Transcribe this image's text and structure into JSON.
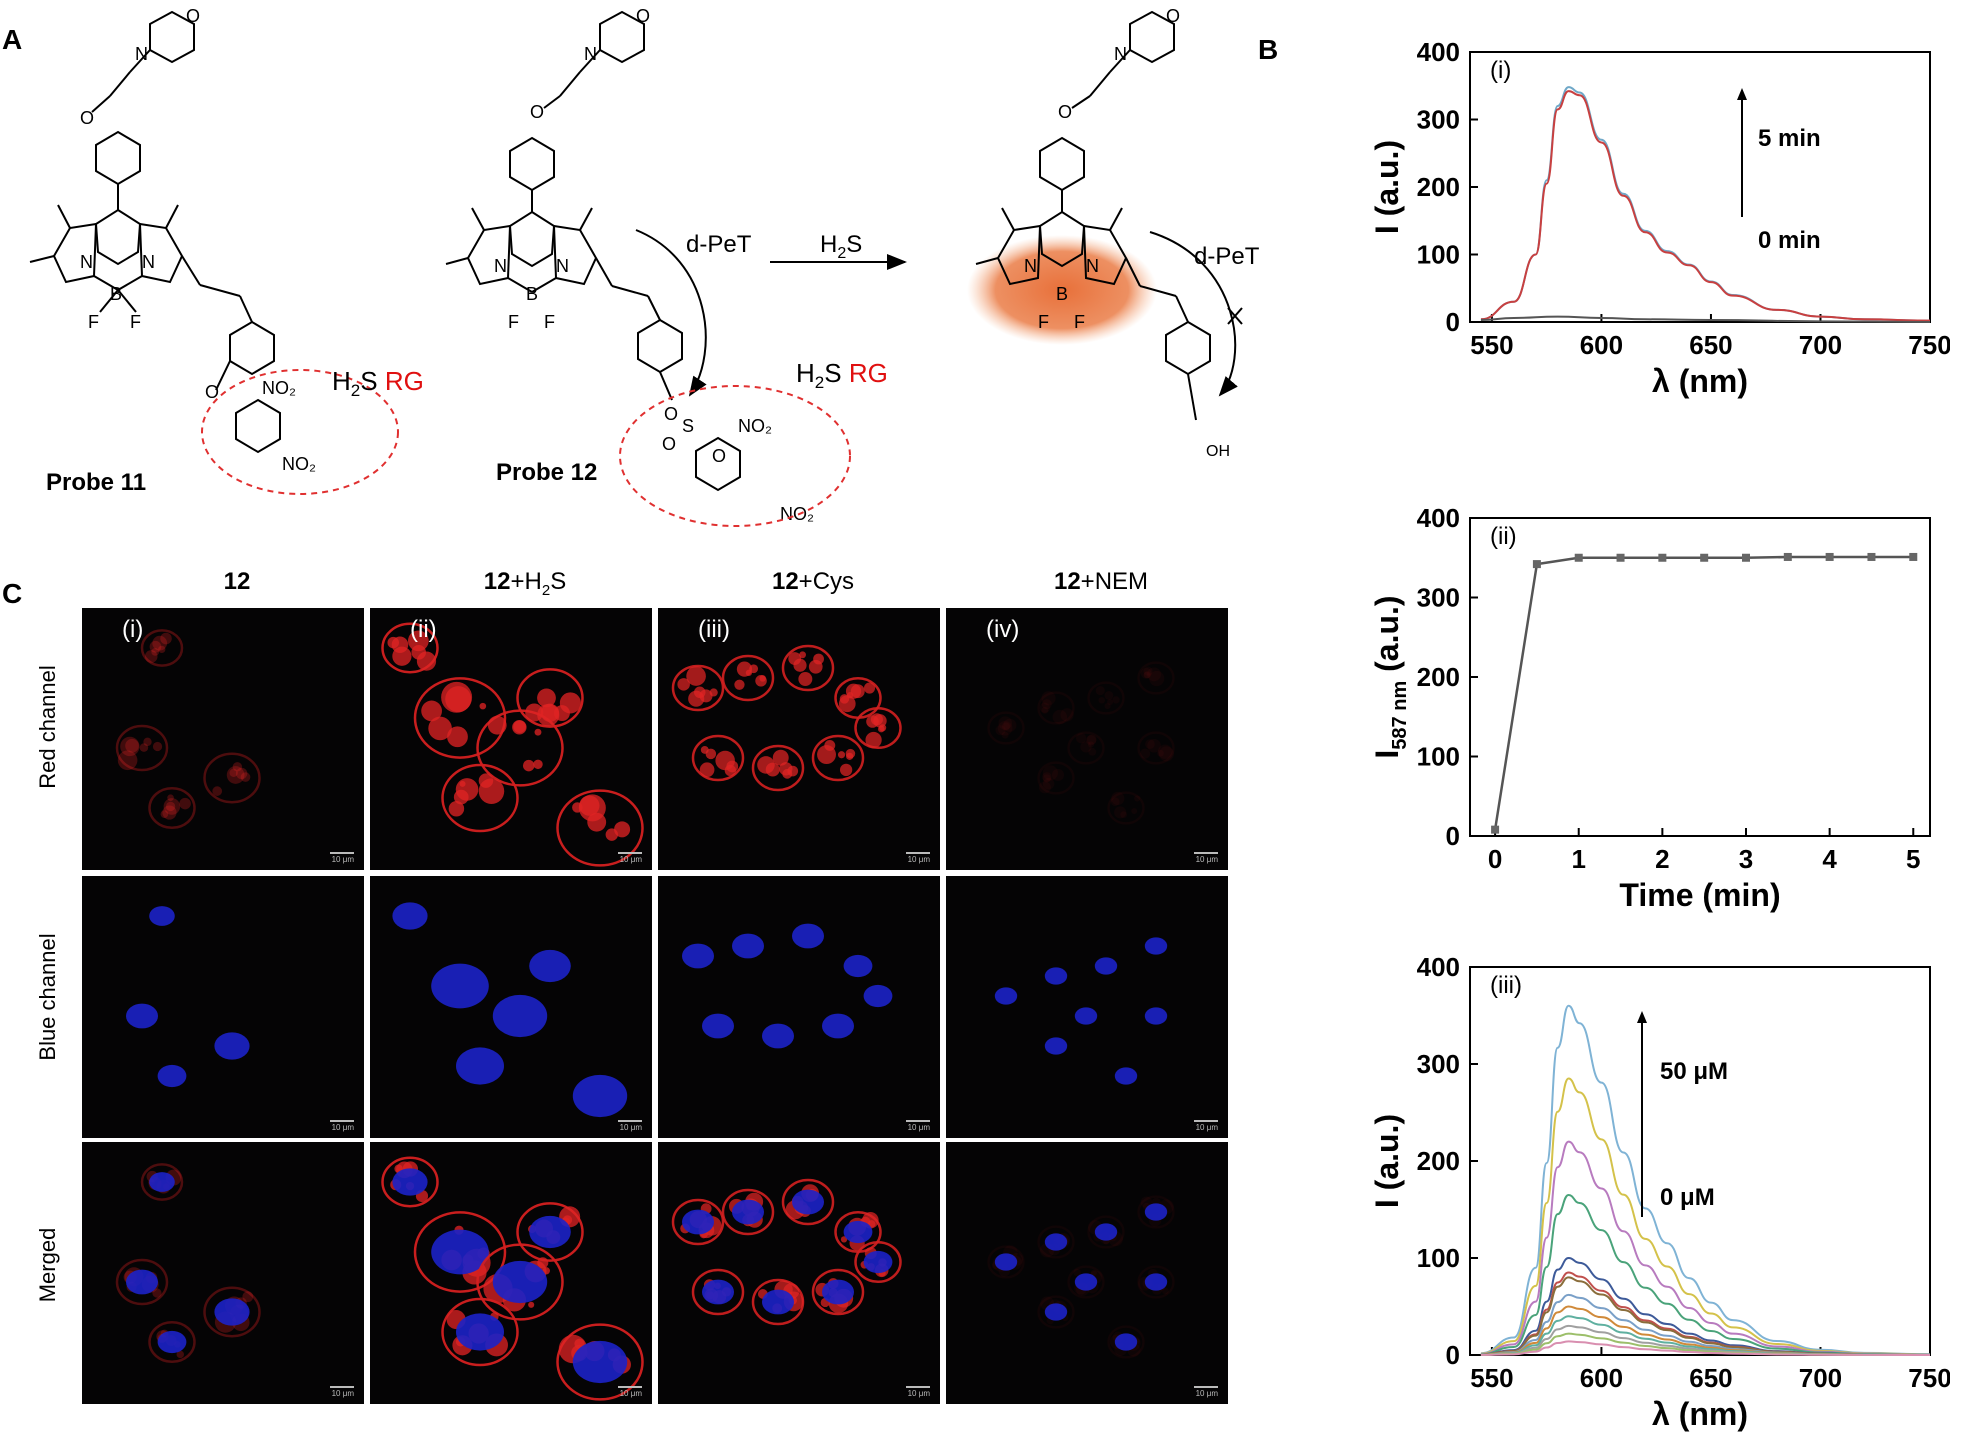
{
  "panels": {
    "A": "A",
    "B": "B",
    "C": "C"
  },
  "chemistry": {
    "probe11": "Probe 11",
    "probe12": "Probe 12",
    "h2s_rg_1": "H2S",
    "rg": "RG",
    "arrow_reagent": "H2S",
    "dpet_1": "d-PeT",
    "dpet_2": "d-PeT",
    "oh": "OH",
    "colors": {
      "red_text": "#e01010",
      "glow": "#e8703a",
      "ring": "#e03030"
    }
  },
  "microscopy": {
    "columns": [
      {
        "bold": "12",
        "suffix": ""
      },
      {
        "bold": "12",
        "suffix": "+H2S"
      },
      {
        "bold": "12",
        "suffix": "+Cys"
      },
      {
        "bold": "12",
        "suffix": "+NEM"
      }
    ],
    "rows": [
      "Red channel",
      "Blue channel",
      "Merged"
    ],
    "sublabels": [
      "(i)",
      "(ii)",
      "(iii)",
      "(iv)"
    ],
    "scalebar": "10 μm"
  },
  "chart_data": [
    {
      "type": "line",
      "panel": "(i)",
      "xlabel": "λ (nm)",
      "ylabel": "I (a.u.)",
      "xlim": [
        540,
        750
      ],
      "ylim": [
        0,
        400
      ],
      "xticks": [
        550,
        600,
        650,
        700,
        750
      ],
      "yticks": [
        0,
        100,
        200,
        300,
        400
      ],
      "annotations": [
        "5 min",
        "0 min"
      ],
      "series": [
        {
          "x": [
            545,
            560,
            570,
            575,
            580,
            585,
            590,
            600,
            610,
            620,
            630,
            640,
            650,
            660,
            680,
            700,
            720,
            750
          ],
          "values": [
            4,
            30,
            100,
            210,
            320,
            348,
            340,
            270,
            190,
            135,
            105,
            85,
            60,
            40,
            18,
            8,
            4,
            2
          ],
          "color": "#6fa8c8"
        },
        {
          "x": [
            545,
            560,
            570,
            575,
            580,
            585,
            590,
            600,
            610,
            620,
            630,
            640,
            650,
            660,
            680,
            700,
            720,
            750
          ],
          "values": [
            4,
            30,
            100,
            205,
            315,
            342,
            336,
            266,
            187,
            133,
            103,
            84,
            59,
            39,
            18,
            8,
            4,
            2
          ],
          "color": "#c84040"
        },
        {
          "x": [
            545,
            560,
            580,
            600,
            620,
            650,
            700,
            750
          ],
          "values": [
            3,
            6,
            8,
            6,
            4,
            3,
            1,
            0
          ],
          "color": "#555555"
        }
      ]
    },
    {
      "type": "line",
      "panel": "(ii)",
      "xlabel": "Time (min)",
      "ylabel": "I587 nm (a.u.)",
      "xlim": [
        -0.3,
        5.2
      ],
      "ylim": [
        0,
        400
      ],
      "xticks": [
        0,
        1,
        2,
        3,
        4,
        5
      ],
      "yticks": [
        0,
        100,
        200,
        300,
        400
      ],
      "series": [
        {
          "x": [
            0,
            0.5,
            1,
            1.5,
            2,
            2.5,
            3,
            3.5,
            4,
            4.5,
            5
          ],
          "values": [
            8,
            342,
            350,
            350,
            350,
            350,
            350,
            351,
            351,
            351,
            351
          ],
          "color": "#555555"
        }
      ]
    },
    {
      "type": "line",
      "panel": "(iii)",
      "xlabel": "λ (nm)",
      "ylabel": "I (a.u.)",
      "xlim": [
        540,
        750
      ],
      "ylim": [
        0,
        400
      ],
      "xticks": [
        550,
        600,
        650,
        700,
        750
      ],
      "yticks": [
        0,
        100,
        200,
        300,
        400
      ],
      "annotations": [
        "50 μM",
        "0 μM"
      ],
      "peaks": [
        360,
        285,
        220,
        165,
        100,
        85,
        80,
        62,
        50,
        40,
        30,
        22,
        14
      ],
      "colors": [
        "#7fb3d5",
        "#d4c24a",
        "#b87bbf",
        "#4aa37a",
        "#3d5a99",
        "#c0504d",
        "#8a6d3b",
        "#7aa0c8",
        "#d08a3a",
        "#5fb0a0",
        "#a0a0a0",
        "#9cbf6a",
        "#d98fb0"
      ]
    }
  ]
}
